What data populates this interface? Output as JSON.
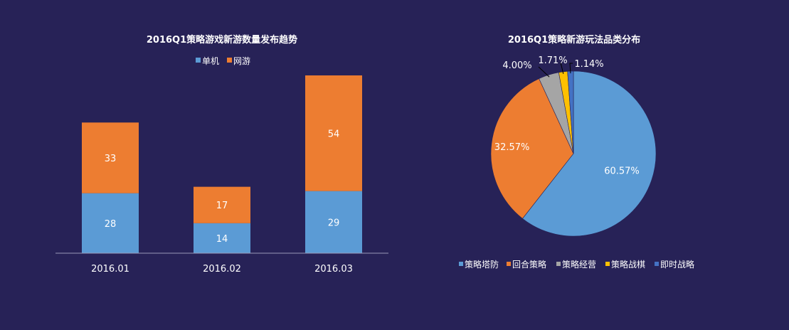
{
  "chart_data": [
    {
      "type": "bar",
      "stacked": true,
      "title": "2016Q1策略游戏新游数量发布趋势",
      "categories": [
        "2016.01",
        "2016.02",
        "2016.03"
      ],
      "series": [
        {
          "name": "单机",
          "values": [
            28,
            14,
            29
          ],
          "color": "#5b9bd5"
        },
        {
          "name": "网游",
          "values": [
            33,
            17,
            54
          ],
          "color": "#ed7d31"
        }
      ],
      "ylim": [
        0,
        85
      ],
      "legend": "top-center",
      "grid": false
    },
    {
      "type": "pie",
      "title": "2016Q1策略新游玩法品类分布",
      "slices": [
        {
          "name": "策略塔防",
          "value": 60.57,
          "label": "60.57%",
          "color": "#5b9bd5"
        },
        {
          "name": "回合策略",
          "value": 32.57,
          "label": "32.57%",
          "color": "#ed7d31"
        },
        {
          "name": "策略经营",
          "value": 4.0,
          "label": "4.00%",
          "color": "#a5a5a5"
        },
        {
          "name": "策略战棋",
          "value": 1.71,
          "label": "1.71%",
          "color": "#ffc000"
        },
        {
          "name": "即时战略",
          "value": 1.14,
          "label": "1.14%",
          "color": "#4472c4"
        }
      ],
      "legend": "bottom"
    }
  ]
}
